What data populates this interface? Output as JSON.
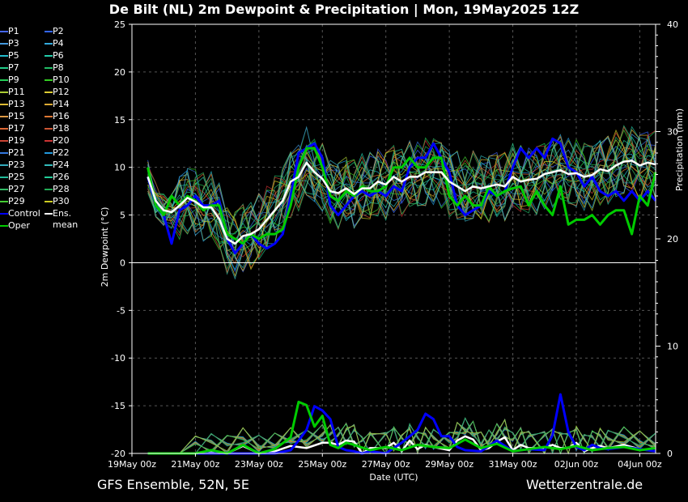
{
  "title": "De Bilt  (NL)  2m Dewpoint & Precipitation | Mon, 19May2025 12Z",
  "footer": {
    "left": "GFS Ensemble, 52N, 5E",
    "right": "Wetterzentrale.de"
  },
  "legend": {
    "members": [
      {
        "label": "P1",
        "color": "#4466ee"
      },
      {
        "label": "P2",
        "color": "#3366ff"
      },
      {
        "label": "P3",
        "color": "#4499dd"
      },
      {
        "label": "P4",
        "color": "#33aadd"
      },
      {
        "label": "P5",
        "color": "#22bbcc"
      },
      {
        "label": "P6",
        "color": "#22ccaa"
      },
      {
        "label": "P7",
        "color": "#22cc88"
      },
      {
        "label": "P8",
        "color": "#22bb66"
      },
      {
        "label": "P9",
        "color": "#22cc55"
      },
      {
        "label": "P10",
        "color": "#33cc22"
      },
      {
        "label": "P11",
        "color": "#aacc33"
      },
      {
        "label": "P12",
        "color": "#ddcc33"
      },
      {
        "label": "P13",
        "color": "#ddbb33"
      },
      {
        "label": "P14",
        "color": "#ddaa33"
      },
      {
        "label": "P15",
        "color": "#dd9944"
      },
      {
        "label": "P16",
        "color": "#dd7733"
      },
      {
        "label": "P17",
        "color": "#dd6633"
      },
      {
        "label": "P18",
        "color": "#cc5533"
      },
      {
        "label": "P19",
        "color": "#cc4433"
      },
      {
        "label": "P20",
        "color": "#cc3333"
      },
      {
        "label": "P21",
        "color": "#3377dd"
      },
      {
        "label": "P22",
        "color": "#2299dd"
      },
      {
        "label": "P23",
        "color": "#33aabb"
      },
      {
        "label": "P24",
        "color": "#33bbbb"
      },
      {
        "label": "P25",
        "color": "#22bb99"
      },
      {
        "label": "P26",
        "color": "#22cc99"
      },
      {
        "label": "P27",
        "color": "#33bb66"
      },
      {
        "label": "P28",
        "color": "#22aa55"
      },
      {
        "label": "P29",
        "color": "#44cc33"
      },
      {
        "label": "P30",
        "color": "#cccc22"
      },
      {
        "label": "Control",
        "color": "#0000ff"
      },
      {
        "label": "Ens. mean",
        "color": "#ffffff"
      },
      {
        "label": "Oper",
        "color": "#00cc00"
      }
    ]
  },
  "chart_data": {
    "type": "line",
    "xlabel": "Date (UTC)",
    "ylabel": "2m Dewpoint (°C)",
    "y2label": "Precipitation (mm)",
    "xlim": [
      0,
      16.5
    ],
    "x_ticks": [
      {
        "x": 0,
        "label": "19May 00z"
      },
      {
        "x": 2,
        "label": "21May 00z"
      },
      {
        "x": 4,
        "label": "23May 00z"
      },
      {
        "x": 6,
        "label": "25May 00z"
      },
      {
        "x": 8,
        "label": "27May 00z"
      },
      {
        "x": 10,
        "label": "29May 00z"
      },
      {
        "x": 12,
        "label": "31May 00z"
      },
      {
        "x": 14,
        "label": "02Jun 00z"
      },
      {
        "x": 16,
        "label": "04Jun 00z"
      }
    ],
    "ylim": [
      -20,
      25
    ],
    "y_ticks": [
      25,
      20,
      15,
      10,
      5,
      0,
      -5,
      -10,
      -15,
      -20
    ],
    "y2lim": [
      0,
      40
    ],
    "y2_ticks": [
      40,
      30,
      20,
      10,
      0
    ],
    "grid": true,
    "legend_placement": "left",
    "mean_dewpoint": {
      "x": [
        0.5,
        0.75,
        1,
        1.25,
        1.5,
        1.75,
        2,
        2.25,
        2.5,
        2.75,
        3,
        3.25,
        3.5,
        3.75,
        4,
        4.25,
        4.5,
        4.75,
        5,
        5.25,
        5.5,
        5.75,
        6,
        6.25,
        6.5,
        6.75,
        7,
        7.25,
        7.5,
        7.75,
        8,
        8.25,
        8.5,
        8.75,
        9,
        9.25,
        9.5,
        9.75,
        10,
        10.25,
        10.5,
        10.75,
        11,
        11.25,
        11.5,
        11.75,
        12,
        12.25,
        12.5,
        12.75,
        13,
        13.25,
        13.5,
        13.75,
        14,
        14.25,
        14.5,
        14.75,
        15,
        15.25,
        15.5,
        15.75,
        16,
        16.25,
        16.5
      ],
      "values": [
        9,
        6.5,
        5.5,
        5.3,
        6,
        6.8,
        6.4,
        5.8,
        5.8,
        4.6,
        2.5,
        2,
        2.8,
        3,
        3.5,
        4.5,
        5.5,
        6.5,
        8.5,
        9,
        10.5,
        9.5,
        8.8,
        7.5,
        7.3,
        7.8,
        7.2,
        7.8,
        7.8,
        8.5,
        8.2,
        9,
        8.5,
        9,
        9,
        9.5,
        9.5,
        9.5,
        8.5,
        8,
        7.5,
        8,
        7.8,
        8,
        8.2,
        8,
        9,
        8.5,
        8.7,
        8.8,
        9.3,
        9.5,
        9.7,
        9.3,
        9.4,
        9,
        9.2,
        9.8,
        9.6,
        10.2,
        10.6,
        10.7,
        10.2,
        10.5,
        10.3
      ]
    },
    "oper_dewpoint": {
      "x": [
        0.5,
        0.75,
        1,
        1.25,
        1.5,
        1.75,
        2,
        2.25,
        2.5,
        2.75,
        3,
        3.25,
        3.5,
        3.75,
        4,
        4.25,
        4.5,
        4.75,
        5,
        5.25,
        5.5,
        5.75,
        6,
        6.25,
        6.5,
        6.75,
        7,
        7.25,
        7.5,
        7.75,
        8,
        8.25,
        8.5,
        8.75,
        9,
        9.25,
        9.5,
        9.75,
        10,
        10.25,
        10.5,
        10.75,
        11,
        11.25,
        11.5,
        11.75,
        12,
        12.25,
        12.5,
        12.75,
        13,
        13.25,
        13.5,
        13.75,
        14,
        14.25,
        14.5,
        14.75,
        15,
        15.25,
        15.5,
        15.75,
        16,
        16.25,
        16.5
      ],
      "values": [
        10,
        6,
        5,
        7,
        6,
        7,
        6.5,
        5.5,
        6,
        6,
        3,
        2.5,
        2,
        3,
        2.5,
        3,
        3,
        3.5,
        6,
        10,
        12,
        12,
        10,
        7,
        6.5,
        7.5,
        7,
        8,
        7.5,
        7.5,
        8,
        10,
        10,
        11,
        10,
        10,
        11,
        11,
        7,
        6,
        7,
        6,
        6,
        8,
        7,
        7.5,
        7.8,
        8,
        6,
        7.5,
        6,
        5,
        8,
        4,
        4.5,
        4.5,
        5,
        4,
        5,
        5.5,
        5.5,
        3,
        7,
        6,
        9.5
      ]
    },
    "control_dewpoint": {
      "x": [
        0.5,
        0.75,
        1,
        1.25,
        1.5,
        1.75,
        2,
        2.25,
        2.5,
        2.75,
        3,
        3.25,
        3.5,
        3.75,
        4,
        4.25,
        4.5,
        4.75,
        5,
        5.25,
        5.5,
        5.75,
        6,
        6.25,
        6.5,
        6.75,
        7,
        7.25,
        7.5,
        7.75,
        8,
        8.25,
        8.5,
        8.75,
        9,
        9.25,
        9.5,
        9.75,
        10,
        10.25,
        10.5,
        10.75,
        11,
        11.25,
        11.5,
        11.75,
        12,
        12.25,
        12.5,
        12.75,
        13,
        13.25,
        13.5,
        13.75,
        14,
        14.25,
        14.5,
        14.75,
        15,
        15.25,
        15.5,
        15.75,
        16,
        16.25,
        16.5
      ],
      "values": [
        9,
        6,
        5,
        2,
        5.5,
        6,
        7,
        6,
        6,
        6.5,
        2.5,
        1,
        2,
        3,
        2,
        1.5,
        2,
        3,
        7,
        11.5,
        12,
        12.5,
        11,
        6,
        5,
        6,
        7,
        7.5,
        7,
        7.5,
        7,
        8,
        7.5,
        10,
        11,
        11,
        12.5,
        11,
        9.5,
        6,
        5,
        5.5,
        6,
        7.5,
        7,
        7.5,
        10,
        12,
        11,
        12,
        11,
        13,
        12.5,
        10,
        9.5,
        8,
        9,
        7.5,
        7,
        7.5,
        6.5,
        7.5,
        6.5,
        7.5,
        6.5
      ]
    },
    "mean_precip": {
      "x": [
        0.5,
        1,
        1.5,
        2,
        2.5,
        3,
        3.5,
        4,
        4.5,
        5,
        5.5,
        6,
        6.25,
        6.5,
        6.75,
        7,
        7.25,
        7.5,
        8,
        8.25,
        8.5,
        8.75,
        9,
        9.25,
        9.5,
        10,
        10.25,
        10.5,
        10.75,
        11,
        11.25,
        11.5,
        11.75,
        12,
        12.25,
        12.5,
        13,
        13.25,
        13.5,
        13.75,
        14,
        14.25,
        14.5,
        14.75,
        15,
        15.5,
        16,
        16.5
      ],
      "values": [
        0,
        0,
        0,
        0,
        0.2,
        0,
        0.7,
        0,
        0.2,
        0.7,
        0.5,
        1,
        1,
        0.8,
        1.2,
        1.1,
        0,
        0.5,
        0.5,
        1,
        0.2,
        1.2,
        0.4,
        0.8,
        0.6,
        0.3,
        1.2,
        1.6,
        1.3,
        0.3,
        0.5,
        1.1,
        1.5,
        0.3,
        0.8,
        0.5,
        0.5,
        0.8,
        0.5,
        0.5,
        1,
        0.2,
        0.5,
        0.7,
        0.5,
        0.8,
        0.4,
        0.2
      ]
    },
    "oper_precip": {
      "x": [
        0.5,
        1,
        1.5,
        2,
        2.5,
        3,
        3.5,
        4,
        4.5,
        5,
        5.25,
        5.5,
        5.75,
        6,
        6.25,
        6.5,
        6.75,
        7,
        7.5,
        8,
        8.5,
        9,
        9.5,
        10,
        10.5,
        11,
        11.5,
        12,
        12.5,
        13,
        13.5,
        14,
        14.5,
        15,
        15.5,
        16,
        16.5
      ],
      "values": [
        0,
        0,
        0,
        0,
        0.3,
        0,
        0.8,
        0,
        0.4,
        1.5,
        4.8,
        4.5,
        2.5,
        3.5,
        0.8,
        0.5,
        1,
        0.8,
        0.3,
        0.6,
        0.3,
        0.8,
        0.6,
        0.5,
        1.3,
        0.5,
        0.9,
        0.2,
        0.4,
        0.6,
        0.4,
        0.7,
        0.3,
        0.5,
        0.6,
        0.3,
        0.5
      ]
    },
    "control_precip": {
      "x": [
        0.5,
        1,
        1.5,
        2,
        2.5,
        3,
        3.5,
        4,
        4.5,
        5,
        5.25,
        5.5,
        5.75,
        6,
        6.25,
        6.5,
        6.75,
        7,
        7.25,
        7.5,
        8,
        8.5,
        9,
        9.25,
        9.5,
        9.75,
        10,
        10.25,
        10.5,
        11,
        11.5,
        12,
        12.5,
        13,
        13.25,
        13.5,
        13.75,
        14,
        14.25,
        14.5,
        14.75,
        15,
        15.5,
        16,
        16.5
      ],
      "values": [
        0,
        0,
        0,
        0,
        0,
        0,
        0,
        0,
        0,
        0.3,
        1.2,
        2.2,
        4.4,
        4,
        3.2,
        0.6,
        0.3,
        0.2,
        0,
        0.2,
        0,
        1,
        2.2,
        3.7,
        3.2,
        1.6,
        1.6,
        0.6,
        0.3,
        0.2,
        1.2,
        0.2,
        0.4,
        0.3,
        1.7,
        5.5,
        2,
        0.6,
        0.3,
        0.8,
        0.5,
        0.4,
        0.6,
        0.4,
        0.2
      ]
    }
  }
}
